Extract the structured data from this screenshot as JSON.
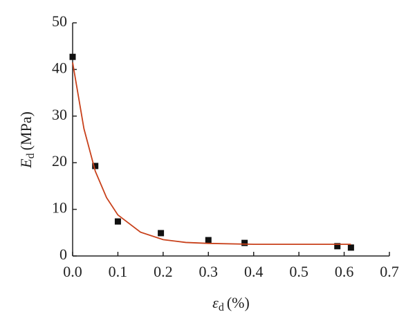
{
  "chart_data": {
    "type": "scatter",
    "xlabel": {
      "symbol": "ε",
      "subscript": "d",
      "unit": "(%)"
    },
    "ylabel": {
      "symbol": "E",
      "subscript": "d",
      "unit": "(MPa)"
    },
    "xlim": [
      0,
      0.7
    ],
    "xticks": [
      {
        "value": 0,
        "label": "0.0"
      },
      0.1,
      0.2,
      0.3,
      0.4,
      0.5,
      0.6,
      0.7
    ],
    "ylim": [
      0,
      50
    ],
    "yticks": [
      0,
      10,
      20,
      30,
      40,
      50
    ],
    "series": [
      {
        "type": "scatter",
        "color": "#111111",
        "x": [
          0.0,
          0.05,
          0.1,
          0.195,
          0.3,
          0.38,
          0.585,
          0.615
        ],
        "values": [
          42.7,
          19.3,
          7.4,
          4.9,
          3.4,
          2.8,
          2.1,
          1.8
        ]
      },
      {
        "type": "line",
        "color": "#c8401a",
        "x": [
          0,
          0.025,
          0.05,
          0.075,
          0.1,
          0.15,
          0.2,
          0.25,
          0.3,
          0.4,
          0.5,
          0.615
        ],
        "values": [
          41.5,
          27.3,
          18.2,
          12.5,
          8.8,
          5.1,
          3.5,
          2.9,
          2.7,
          2.5,
          2.5,
          2.5
        ]
      }
    ]
  }
}
